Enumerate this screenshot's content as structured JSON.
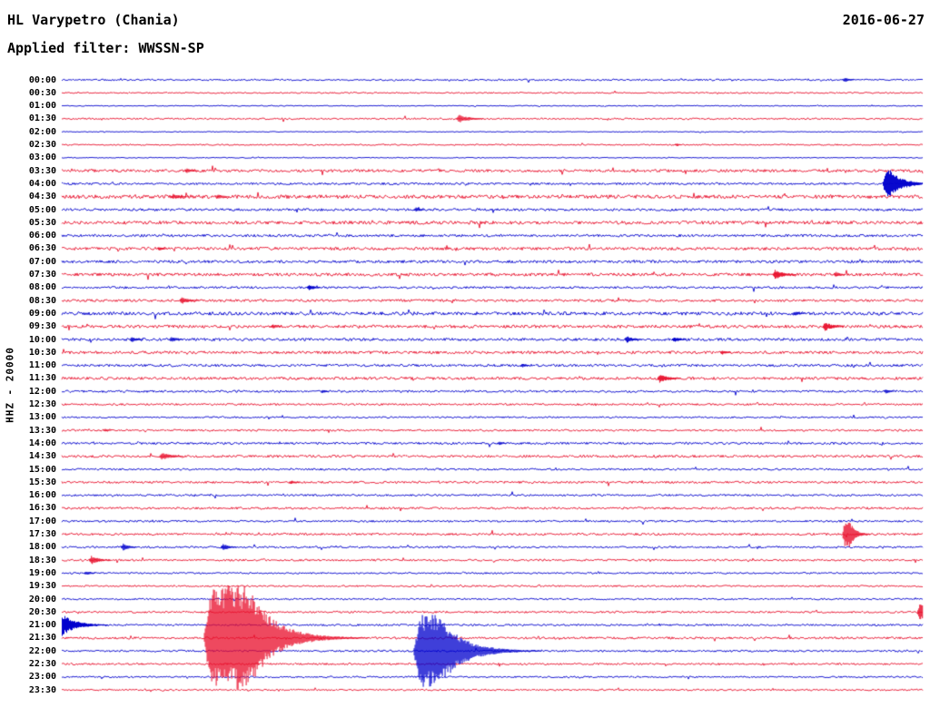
{
  "header": {
    "station": "HL Varypetro (Chania)",
    "date": "2016-06-27",
    "filter": "Applied filter: WWSSN-SP"
  },
  "y_axis_label": "HHZ - 20000",
  "chart_data": {
    "type": "line",
    "title": "Helicorder seismogram, station HL Varypetro (Chania), channel HHZ, 2016-06-27, WWSSN-SP filter, scale 20000",
    "minutes_per_line": 30,
    "legend_position": "none",
    "grid": false,
    "colors": {
      "blue": "#0000cd",
      "red": "#e8112d"
    },
    "rows": [
      {
        "time": "00:00",
        "color": "blue",
        "noise": 0.6
      },
      {
        "time": "00:30",
        "color": "red",
        "noise": 0.5
      },
      {
        "time": "01:00",
        "color": "blue",
        "noise": 0.35
      },
      {
        "time": "01:30",
        "color": "red",
        "noise": 0.6
      },
      {
        "time": "02:00",
        "color": "blue",
        "noise": 0.3
      },
      {
        "time": "02:30",
        "color": "red",
        "noise": 0.5
      },
      {
        "time": "03:00",
        "color": "blue",
        "noise": 0.35
      },
      {
        "time": "03:30",
        "color": "red",
        "noise": 1.0
      },
      {
        "time": "04:00",
        "color": "blue",
        "noise": 0.8
      },
      {
        "time": "04:30",
        "color": "red",
        "noise": 1.3
      },
      {
        "time": "05:00",
        "color": "blue",
        "noise": 0.9
      },
      {
        "time": "05:30",
        "color": "red",
        "noise": 1.2
      },
      {
        "time": "06:00",
        "color": "blue",
        "noise": 0.9
      },
      {
        "time": "06:30",
        "color": "red",
        "noise": 1.1
      },
      {
        "time": "07:00",
        "color": "blue",
        "noise": 1.0
      },
      {
        "time": "07:30",
        "color": "red",
        "noise": 1.1
      },
      {
        "time": "08:00",
        "color": "blue",
        "noise": 0.8
      },
      {
        "time": "08:30",
        "color": "red",
        "noise": 0.9
      },
      {
        "time": "09:00",
        "color": "blue",
        "noise": 1.2
      },
      {
        "time": "09:30",
        "color": "red",
        "noise": 1.1
      },
      {
        "time": "10:00",
        "color": "blue",
        "noise": 1.0
      },
      {
        "time": "10:30",
        "color": "red",
        "noise": 1.0
      },
      {
        "time": "11:00",
        "color": "blue",
        "noise": 0.9
      },
      {
        "time": "11:30",
        "color": "red",
        "noise": 1.0
      },
      {
        "time": "12:00",
        "color": "blue",
        "noise": 0.8
      },
      {
        "time": "12:30",
        "color": "red",
        "noise": 0.7
      },
      {
        "time": "13:00",
        "color": "blue",
        "noise": 0.6
      },
      {
        "time": "13:30",
        "color": "red",
        "noise": 0.7
      },
      {
        "time": "14:00",
        "color": "blue",
        "noise": 0.8
      },
      {
        "time": "14:30",
        "color": "red",
        "noise": 0.9
      },
      {
        "time": "15:00",
        "color": "blue",
        "noise": 0.7
      },
      {
        "time": "15:30",
        "color": "red",
        "noise": 0.8
      },
      {
        "time": "16:00",
        "color": "blue",
        "noise": 0.7
      },
      {
        "time": "16:30",
        "color": "red",
        "noise": 0.8
      },
      {
        "time": "17:00",
        "color": "blue",
        "noise": 0.7
      },
      {
        "time": "17:30",
        "color": "red",
        "noise": 0.8
      },
      {
        "time": "18:00",
        "color": "blue",
        "noise": 0.7
      },
      {
        "time": "18:30",
        "color": "red",
        "noise": 0.7
      },
      {
        "time": "19:00",
        "color": "blue",
        "noise": 0.6
      },
      {
        "time": "19:30",
        "color": "red",
        "noise": 0.6
      },
      {
        "time": "20:00",
        "color": "blue",
        "noise": 0.6
      },
      {
        "time": "20:30",
        "color": "red",
        "noise": 0.7
      },
      {
        "time": "21:00",
        "color": "blue",
        "noise": 0.7
      },
      {
        "time": "21:30",
        "color": "red",
        "noise": 0.8
      },
      {
        "time": "22:00",
        "color": "blue",
        "noise": 0.7
      },
      {
        "time": "22:30",
        "color": "red",
        "noise": 0.7
      },
      {
        "time": "23:00",
        "color": "blue",
        "noise": 0.6
      },
      {
        "time": "23:30",
        "color": "red",
        "noise": 0.6
      }
    ],
    "events": [
      {
        "time": "00:00",
        "x": 0.909,
        "amp": 2.5,
        "tau": 6
      },
      {
        "time": "01:30",
        "x": 0.461,
        "amp": 4.5,
        "tau": 12
      },
      {
        "time": "02:30",
        "x": 0.714,
        "amp": 1.5,
        "tau": 4
      },
      {
        "time": "03:30",
        "x": 0.145,
        "amp": 2.5,
        "tau": 8
      },
      {
        "time": "04:00",
        "x": 0.957,
        "amp": 15,
        "tau": 14,
        "hold": 5
      },
      {
        "time": "04:30",
        "x": 0.129,
        "amp": 3,
        "tau": 10
      },
      {
        "time": "04:30",
        "x": 0.181,
        "amp": 2.5,
        "tau": 8
      },
      {
        "time": "05:00",
        "x": 0.411,
        "amp": 2.5,
        "tau": 6
      },
      {
        "time": "06:30",
        "x": 0.113,
        "amp": 2.2,
        "tau": 6
      },
      {
        "time": "07:30",
        "x": 0.828,
        "amp": 5.5,
        "tau": 10
      },
      {
        "time": "07:30",
        "x": 0.899,
        "amp": 3,
        "tau": 6
      },
      {
        "time": "08:00",
        "x": 0.287,
        "amp": 3.2,
        "tau": 7
      },
      {
        "time": "08:30",
        "x": 0.139,
        "amp": 4,
        "tau": 9
      },
      {
        "time": "09:00",
        "x": 0.851,
        "amp": 2.5,
        "tau": 6
      },
      {
        "time": "09:30",
        "x": 0.245,
        "amp": 2.3,
        "tau": 6
      },
      {
        "time": "09:30",
        "x": 0.886,
        "amp": 5,
        "tau": 9
      },
      {
        "time": "10:00",
        "x": 0.081,
        "amp": 3,
        "tau": 7
      },
      {
        "time": "10:00",
        "x": 0.127,
        "amp": 3,
        "tau": 7
      },
      {
        "time": "10:00",
        "x": 0.656,
        "amp": 3.8,
        "tau": 8
      },
      {
        "time": "10:00",
        "x": 0.711,
        "amp": 3.2,
        "tau": 7
      },
      {
        "time": "10:30",
        "x": 0.767,
        "amp": 2.5,
        "tau": 6
      },
      {
        "time": "11:00",
        "x": 0.535,
        "amp": 2.3,
        "tau": 5
      },
      {
        "time": "11:30",
        "x": 0.694,
        "amp": 5,
        "tau": 10
      },
      {
        "time": "12:00",
        "x": 0.303,
        "amp": 2,
        "tau": 5
      },
      {
        "time": "12:00",
        "x": 0.957,
        "amp": 2.5,
        "tau": 5
      },
      {
        "time": "13:30",
        "x": 0.05,
        "amp": 1.8,
        "tau": 5
      },
      {
        "time": "14:00",
        "x": 0.508,
        "amp": 2,
        "tau": 5
      },
      {
        "time": "14:30",
        "x": 0.116,
        "amp": 4.2,
        "tau": 11
      },
      {
        "time": "15:30",
        "x": 0.266,
        "amp": 2.2,
        "tau": 6
      },
      {
        "time": "17:30",
        "x": 0.909,
        "amp": 14,
        "tau": 7,
        "hold": 5
      },
      {
        "time": "18:00",
        "x": 0.071,
        "amp": 4,
        "tau": 7
      },
      {
        "time": "18:00",
        "x": 0.187,
        "amp": 4,
        "tau": 7
      },
      {
        "time": "18:30",
        "x": 0.034,
        "amp": 5,
        "tau": 9
      },
      {
        "time": "19:00",
        "x": 0.028,
        "amp": 2.5,
        "tau": 6
      },
      {
        "time": "20:30",
        "x": 0.996,
        "amp": 9,
        "tau": 8,
        "hold": 3
      },
      {
        "time": "21:00",
        "x": 0.0,
        "amp": 12,
        "tau": 16,
        "attack": 0
      },
      {
        "time": "21:30",
        "x": 0.173,
        "amp": 58,
        "tau": 28,
        "hold": 40
      },
      {
        "time": "22:00",
        "x": 0.416,
        "amp": 40,
        "tau": 26,
        "hold": 20
      }
    ]
  }
}
